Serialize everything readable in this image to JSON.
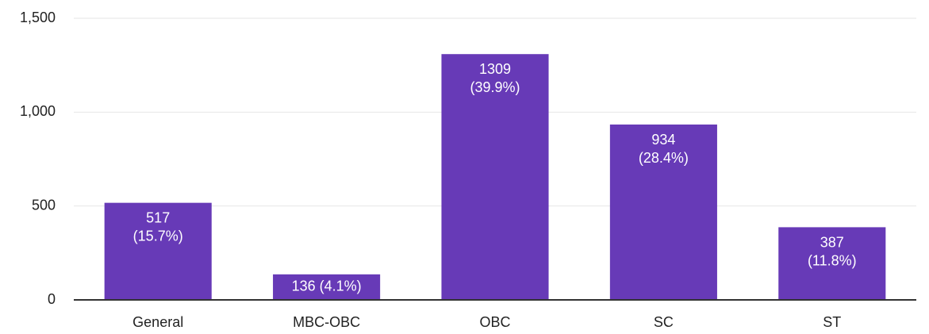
{
  "chart_data": {
    "type": "bar",
    "categories": [
      "General",
      "MBC-OBC",
      "OBC",
      "SC",
      "ST"
    ],
    "values": [
      517,
      136,
      1309,
      934,
      387
    ],
    "value_labels": [
      "517 (15.7%)",
      "136 (4.1%)",
      "1309 (39.9%)",
      "934 (28.4%)",
      "387 (11.8%)"
    ],
    "color": "#673ab7",
    "ylim": [
      0,
      1500
    ],
    "yticks": [
      0,
      500,
      {
        "value": 1000,
        "label": "1,000"
      },
      {
        "value": 1500,
        "label": "1,500"
      }
    ],
    "grid": true
  }
}
